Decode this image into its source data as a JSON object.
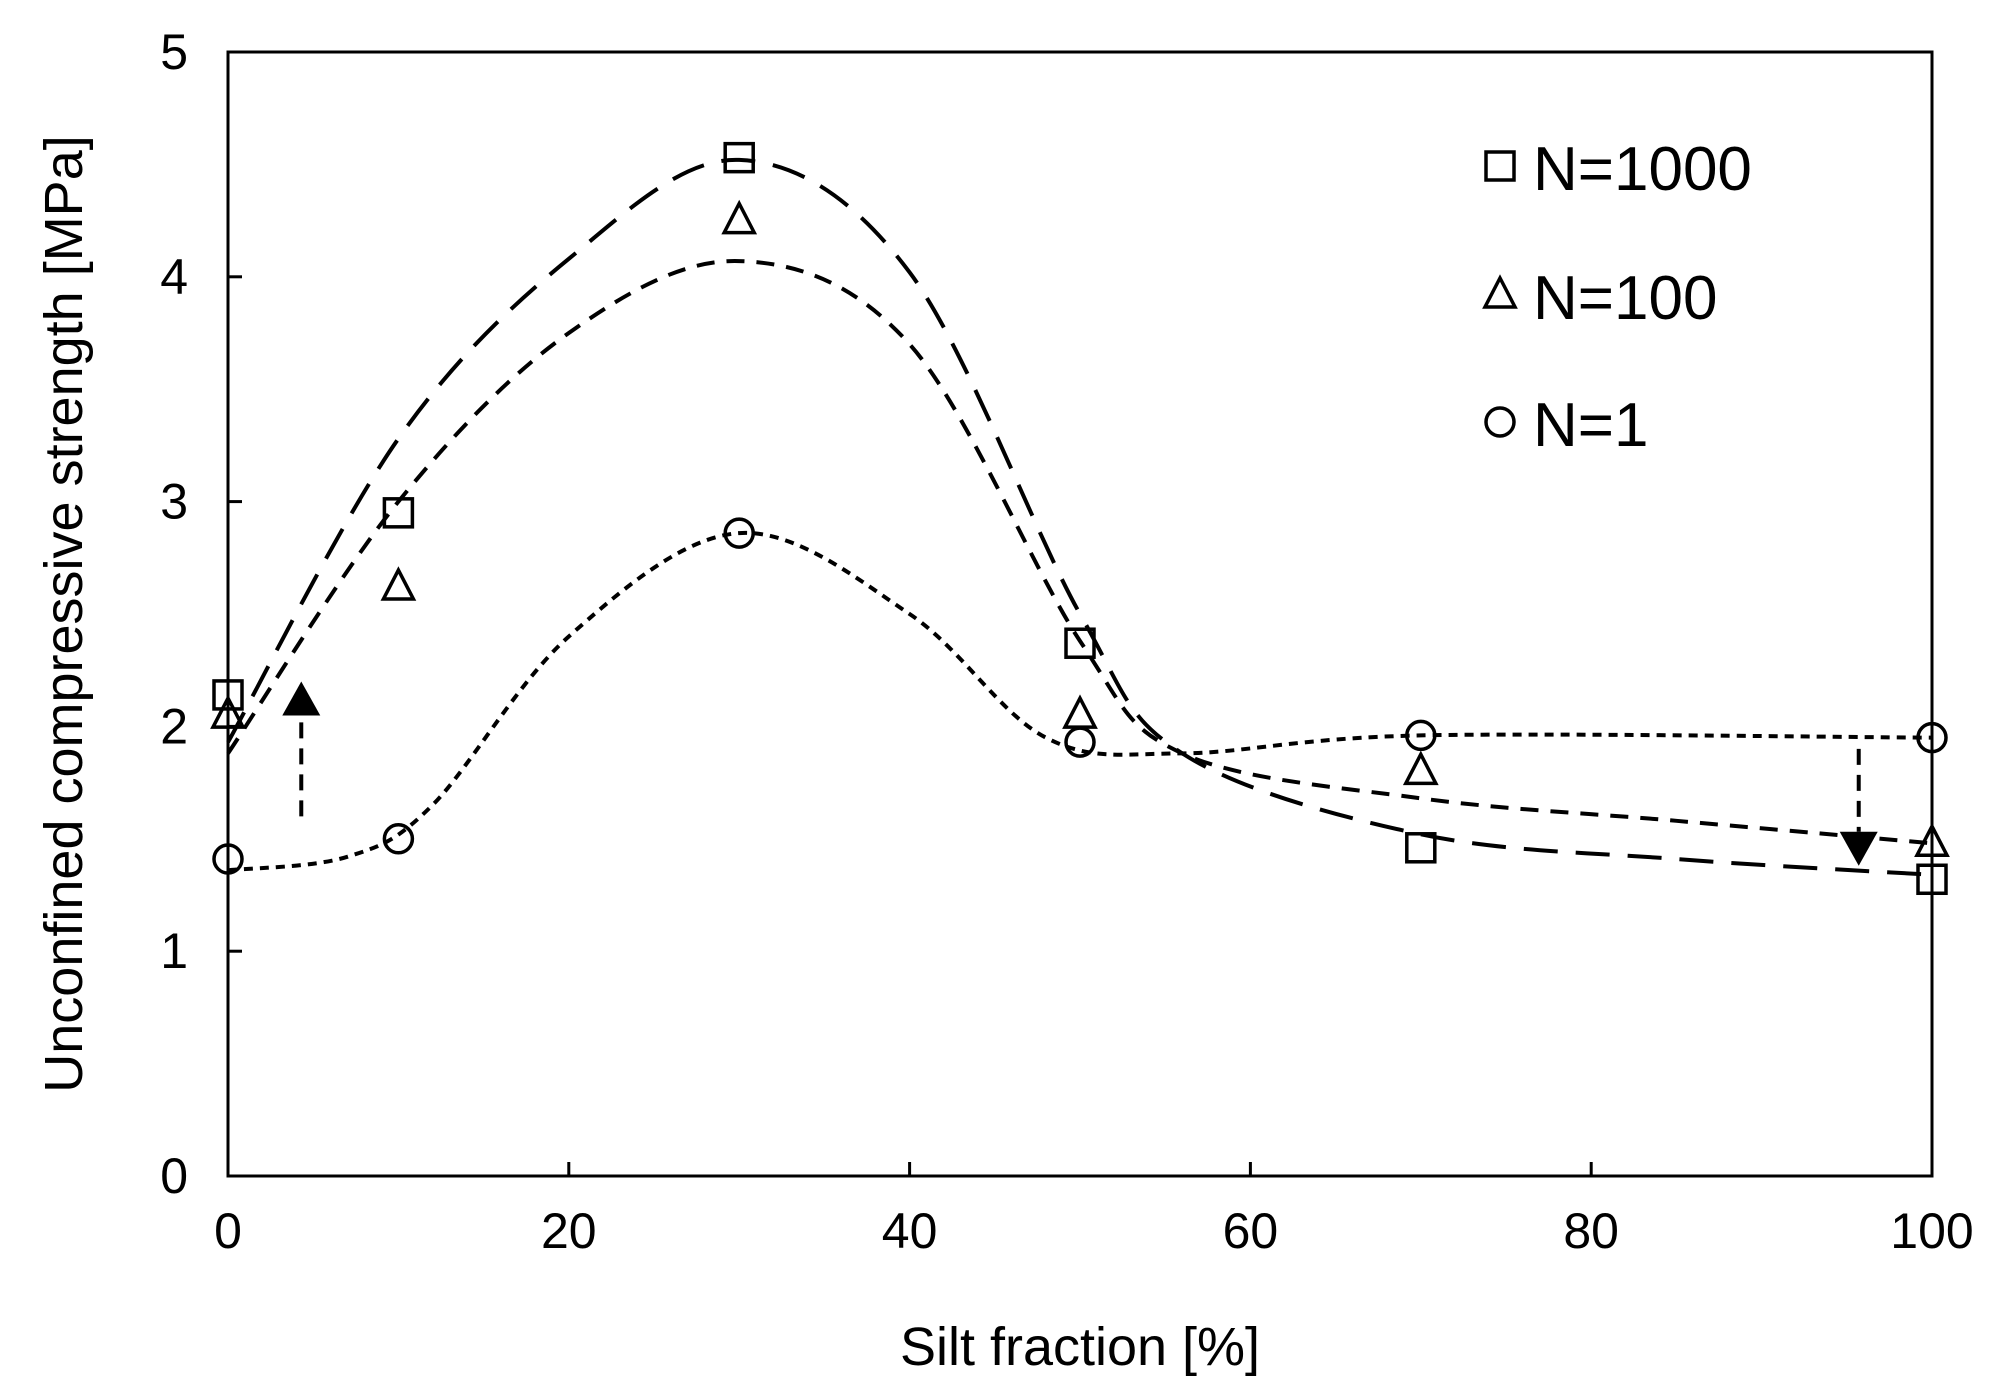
{
  "chart_data": {
    "type": "scatter",
    "xlabel": "Silt fraction [%]",
    "ylabel": "Unconfined compressive strength [MPa]",
    "xlim": [
      0,
      100
    ],
    "ylim": [
      0,
      5
    ],
    "xticks": [
      0,
      20,
      40,
      60,
      80,
      100
    ],
    "yticks": [
      0,
      1,
      2,
      3,
      4,
      5
    ],
    "grid": false,
    "legend_position": "top-right",
    "series": [
      {
        "name": "N=1000",
        "marker": "square",
        "x": [
          0,
          10,
          30,
          50,
          70,
          100
        ],
        "y": [
          2.14,
          2.95,
          4.53,
          2.37,
          1.46,
          1.32
        ],
        "fit_line": {
          "style": "long-dash",
          "x": [
            0,
            10,
            20,
            30,
            40,
            50,
            56,
            70,
            85,
            100
          ],
          "y": [
            1.93,
            3.28,
            4.08,
            4.52,
            4.02,
            2.5,
            1.88,
            1.52,
            1.41,
            1.34
          ]
        }
      },
      {
        "name": "N=100",
        "marker": "triangle",
        "x": [
          0,
          10,
          30,
          50,
          70,
          100
        ],
        "y": [
          2.05,
          2.62,
          4.25,
          2.05,
          1.8,
          1.48
        ],
        "fit_line": {
          "style": "short-dash",
          "x": [
            0,
            10,
            20,
            30,
            40,
            50,
            56,
            70,
            85,
            100
          ],
          "y": [
            1.88,
            3.0,
            3.75,
            4.07,
            3.7,
            2.38,
            1.88,
            1.68,
            1.58,
            1.48
          ]
        }
      },
      {
        "name": "N=1",
        "marker": "circle",
        "x": [
          0,
          10,
          30,
          50,
          70,
          100
        ],
        "y": [
          1.41,
          1.5,
          2.86,
          1.93,
          1.96,
          1.95
        ],
        "fit_line": {
          "style": "dotted-dash",
          "x": [
            0,
            7,
            12,
            20,
            30,
            40,
            48,
            56,
            70,
            100
          ],
          "y": [
            1.36,
            1.42,
            1.65,
            2.4,
            2.86,
            2.5,
            1.95,
            1.88,
            1.96,
            1.95
          ]
        }
      }
    ],
    "annotations": [
      {
        "type": "arrow-up",
        "x": 4.3,
        "y_from": 1.6,
        "y_to": 2.2
      },
      {
        "type": "arrow-down",
        "x": 95.7,
        "y_from": 1.9,
        "y_to": 1.38
      }
    ]
  }
}
